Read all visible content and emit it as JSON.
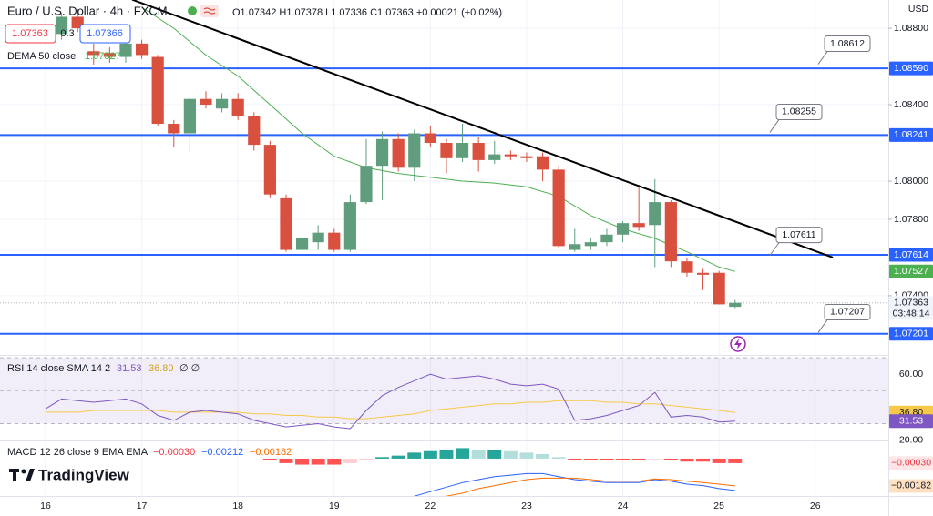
{
  "chart_data": {
    "type": "candlestick",
    "title": "Euro / U.S. Dollar · 4h · FXCM",
    "ohlc_text": "O1.07342 H1.07378 L1.07336 C1.07363 +0.00021 (+0.02%)",
    "currency": "USD",
    "sell_price": "1.07363",
    "spread": "0.3",
    "buy_price": "1.07366",
    "up_color": "#5f9d7d",
    "down_color": "#d9503f",
    "grid": true,
    "candles": {
      "x": [
        1,
        2,
        3,
        4,
        5,
        6,
        7,
        8,
        9,
        10,
        11,
        12,
        13,
        14,
        15,
        16,
        17,
        18,
        19,
        20,
        21,
        22,
        23,
        24,
        25,
        26,
        27,
        28,
        29,
        30,
        31,
        32,
        33,
        34,
        35,
        36,
        37,
        38,
        39,
        40,
        41,
        42,
        43
      ],
      "open": [
        1.0877,
        1.0886,
        1.0868,
        1.0867,
        1.0865,
        1.0872,
        1.0865,
        1.083,
        1.0825,
        1.0843,
        1.0838,
        1.0843,
        1.0834,
        1.0819,
        1.0791,
        1.0764,
        1.0768,
        1.0773,
        1.0764,
        1.0789,
        1.0808,
        1.0822,
        1.0807,
        1.0825,
        1.082,
        1.0812,
        1.082,
        1.0811,
        1.0814,
        1.0813,
        1.0813,
        1.0806,
        1.0764,
        1.0766,
        1.0768,
        1.0772,
        1.0778,
        1.0777,
        1.0789,
        1.0758,
        1.0752,
        1.0752,
        1.07342
      ],
      "high": [
        1.0888,
        1.089,
        1.0872,
        1.087,
        1.0875,
        1.0874,
        1.0866,
        1.0832,
        1.0844,
        1.0847,
        1.0846,
        1.0846,
        1.0836,
        1.0821,
        1.0793,
        1.0771,
        1.0777,
        1.0775,
        1.0793,
        1.0822,
        1.0826,
        1.0825,
        1.0827,
        1.0829,
        1.0822,
        1.083,
        1.0823,
        1.0821,
        1.0816,
        1.0815,
        1.0815,
        1.0808,
        1.0775,
        1.077,
        1.0775,
        1.0779,
        1.0798,
        1.0801,
        1.079,
        1.076,
        1.0754,
        1.0753,
        1.07378
      ],
      "low": [
        1.0874,
        1.0878,
        1.0861,
        1.0862,
        1.0862,
        1.0864,
        1.0829,
        1.0818,
        1.0815,
        1.0838,
        1.0836,
        1.0832,
        1.0816,
        1.0791,
        1.0763,
        1.0763,
        1.0764,
        1.0763,
        1.0763,
        1.0788,
        1.079,
        1.0805,
        1.08,
        1.0818,
        1.0804,
        1.081,
        1.0805,
        1.0809,
        1.0811,
        1.081,
        1.08,
        1.0765,
        1.0763,
        1.0764,
        1.0766,
        1.0768,
        1.0774,
        1.0755,
        1.0755,
        1.075,
        1.0743,
        1.07355,
        1.07336
      ],
      "close": [
        1.0886,
        1.088,
        1.0866,
        1.0865,
        1.0872,
        1.0866,
        1.083,
        1.0825,
        1.0843,
        1.084,
        1.0843,
        1.0834,
        1.0819,
        1.0793,
        1.0764,
        1.077,
        1.0773,
        1.0764,
        1.0789,
        1.0808,
        1.0822,
        1.0807,
        1.0825,
        1.082,
        1.0812,
        1.082,
        1.0811,
        1.0814,
        1.0813,
        1.0812,
        1.0806,
        1.0766,
        1.0767,
        1.0768,
        1.0772,
        1.0778,
        1.0776,
        1.0789,
        1.0758,
        1.0752,
        1.0751,
        1.07355,
        1.07363
      ]
    },
    "xlim": [
      -2.84,
      52.56
    ],
    "xticks": [
      {
        "value": 0,
        "label": "16"
      },
      {
        "value": 6,
        "label": "17"
      },
      {
        "value": 12,
        "label": "18"
      },
      {
        "value": 18,
        "label": "19"
      },
      {
        "value": 24,
        "label": "22"
      },
      {
        "value": 30,
        "label": "23"
      },
      {
        "value": 36,
        "label": "24"
      },
      {
        "value": 42,
        "label": "25"
      },
      {
        "value": 48,
        "label": "26"
      }
    ],
    "ylim": [
      1.0709,
      1.08948
    ],
    "yticks": [
      {
        "value": 1.088,
        "label": "1.08800"
      },
      {
        "value": 1.084,
        "label": "1.08400"
      },
      {
        "value": 1.08,
        "label": "1.08000"
      },
      {
        "value": 1.078,
        "label": "1.07800"
      },
      {
        "value": 1.074,
        "label": "1.07400"
      }
    ],
    "last_price": {
      "value": 1.07363,
      "label": "1.07363",
      "countdown": "03:48:14"
    },
    "dema": {
      "name": "DEMA 50 close",
      "label": "1.07527",
      "value": 1.07527,
      "color": "#4caf50",
      "x": [
        6,
        8,
        10,
        12,
        14,
        16,
        18,
        20,
        22,
        24,
        26,
        28,
        30,
        32,
        34,
        36,
        38,
        40,
        42,
        43
      ],
      "values": [
        1.0891,
        1.088,
        1.0866,
        1.0855,
        1.084,
        1.0825,
        1.0813,
        1.0807,
        1.0804,
        1.0802,
        1.08,
        1.0799,
        1.0797,
        1.0792,
        1.0782,
        1.0775,
        1.077,
        1.0763,
        1.0755,
        1.07527
      ]
    },
    "level_color": "#2962ff",
    "levels": [
      {
        "value": 1.0859,
        "label": "1.08590"
      },
      {
        "value": 1.08241,
        "label": "1.08241"
      },
      {
        "value": 1.07614,
        "label": "1.07614"
      },
      {
        "value": 1.07201,
        "label": "1.07201"
      }
    ],
    "callouts": [
      {
        "value": 1.08612,
        "label": "1.08612"
      },
      {
        "value": 1.08255,
        "label": "1.08255"
      },
      {
        "value": 1.07611,
        "label": "1.07611"
      },
      {
        "value": 1.07207,
        "label": "1.07207"
      }
    ],
    "trendline": {
      "x": [
        5.4,
        49.1
      ],
      "values": [
        1.0895,
        1.076
      ],
      "color": "#000000"
    },
    "rsi": {
      "name": "RSI 14 close SMA 14 2",
      "value": {
        "value": 31.53,
        "label": "31.53"
      },
      "sma_value": {
        "value": 36.8,
        "label": "36.80"
      },
      "extra": "∅ ∅",
      "color": "#7e57c2",
      "sma_color": "#f7c948",
      "ylim": [
        19.8,
        70.6
      ],
      "band": [
        30,
        70
      ],
      "middle": 50,
      "yticks": [
        {
          "value": 60,
          "label": "60.00"
        },
        {
          "value": 20,
          "label": "20.00"
        }
      ],
      "x": [
        0,
        1,
        2,
        3,
        4,
        5,
        6,
        7,
        8,
        9,
        10,
        11,
        12,
        13,
        14,
        15,
        16,
        17,
        18,
        19,
        20,
        21,
        22,
        23,
        24,
        25,
        26,
        27,
        28,
        29,
        30,
        31,
        32,
        33,
        34,
        35,
        36,
        37,
        38,
        39,
        40,
        41,
        42,
        43
      ],
      "values": [
        39,
        45,
        44,
        43,
        44,
        45,
        42,
        35,
        32,
        37,
        38,
        37,
        36,
        32,
        30,
        28,
        29,
        30,
        28,
        27,
        38,
        47,
        52,
        56,
        60,
        57,
        58,
        59,
        57,
        54,
        53,
        54,
        51,
        32,
        33,
        35,
        38,
        41,
        49,
        34,
        35,
        34,
        31,
        31.53
      ],
      "sma": [
        37,
        37,
        37,
        38,
        38,
        38,
        38,
        38,
        37,
        37,
        37,
        37,
        37,
        36,
        36,
        35,
        35,
        34,
        34,
        33,
        33,
        34,
        35,
        36,
        38,
        39,
        40,
        41,
        42,
        42,
        43,
        43,
        44,
        44,
        44,
        43,
        43,
        42,
        42,
        41,
        40,
        39,
        38,
        36.8
      ]
    },
    "macd": {
      "name": "MACD 12 26 close 9 EMA EMA",
      "hist_value": {
        "value": -0.0003,
        "label": "−0.00030"
      },
      "macd_value": {
        "value": -0.00212,
        "label": "−0.00212"
      },
      "signal_value": {
        "value": -0.00182,
        "label": "−0.00182"
      },
      "macd_color": "#2962ff",
      "signal_color": "#ff6d00",
      "ylim": [
        -0.00249,
        0.00115
      ],
      "x": [
        14,
        15,
        16,
        17,
        18,
        19,
        20,
        21,
        22,
        23,
        24,
        25,
        26,
        27,
        28,
        29,
        30,
        31,
        32,
        33,
        34,
        35,
        36,
        37,
        38,
        39,
        40,
        41,
        42,
        43
      ],
      "hist": [
        -0.0001,
        -0.0003,
        -0.0004,
        -0.0004,
        -0.0004,
        -0.0003,
        -0.0001,
        0.0001,
        0.0002,
        0.0004,
        0.0005,
        0.0006,
        0.0007,
        0.0006,
        0.0006,
        0.0005,
        0.0004,
        0.0003,
        0.0001,
        -0.0001,
        -0.0001,
        -0.0001,
        -0.0001,
        -0.0001,
        -5e-05,
        -0.0001,
        -0.0002,
        -0.0002,
        -0.0003,
        -0.0003
      ],
      "macd": [
        -0.003,
        -0.0033,
        -0.0035,
        -0.0036,
        -0.0036,
        -0.0036,
        -0.0034,
        -0.0031,
        -0.0028,
        -0.0025,
        -0.0022,
        -0.0019,
        -0.0016,
        -0.0014,
        -0.0012,
        -0.0011,
        -0.001,
        -0.001,
        -0.0012,
        -0.0014,
        -0.0015,
        -0.0016,
        -0.0016,
        -0.0016,
        -0.0014,
        -0.0015,
        -0.0017,
        -0.0018,
        -0.002,
        -0.00212
      ],
      "signal": [
        -0.0029,
        -0.003,
        -0.0031,
        -0.0032,
        -0.0032,
        -0.0033,
        -0.0033,
        -0.0032,
        -0.003,
        -0.0029,
        -0.0027,
        -0.0025,
        -0.0023,
        -0.002,
        -0.0018,
        -0.0016,
        -0.0014,
        -0.0013,
        -0.0013,
        -0.0013,
        -0.0014,
        -0.0015,
        -0.0015,
        -0.0015,
        -0.00135,
        -0.0014,
        -0.0015,
        -0.0016,
        -0.0017,
        -0.00182
      ]
    }
  },
  "branding": "TradingView"
}
